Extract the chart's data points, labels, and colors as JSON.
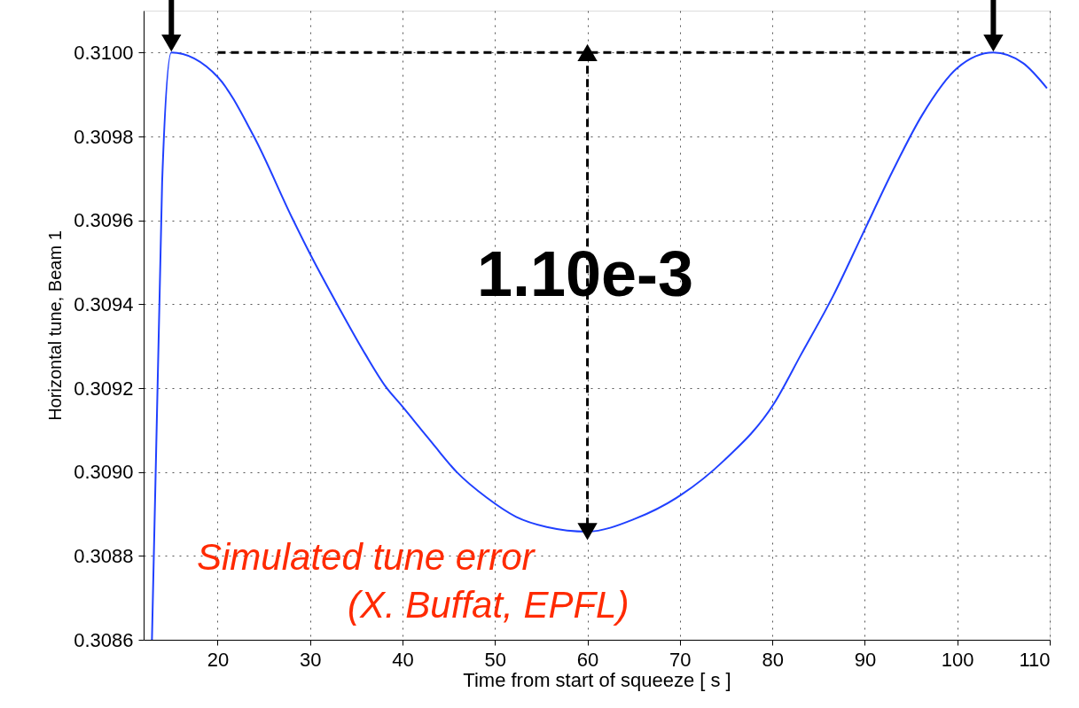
{
  "chart_data": {
    "type": "line",
    "xlabel": "Time from start of squeeze [ s ]",
    "ylabel": "Horizontal tune, Beam 1",
    "xlim": [
      12,
      110
    ],
    "xticks": [
      20,
      30,
      40,
      50,
      60,
      70,
      80,
      90,
      100,
      110
    ],
    "ylim": [
      0.3086,
      0.3101
    ],
    "yticks": [
      {
        "value": 0.3086,
        "label": "0.3086"
      },
      0.3088,
      {
        "value": 0.309,
        "label": "0.3090"
      },
      0.3092,
      0.3094,
      0.3096,
      0.3098,
      {
        "value": 0.31,
        "label": "0.3100"
      }
    ],
    "grid": true,
    "line_style": "solid",
    "marker": "none",
    "series": [
      {
        "color": "#2040ff",
        "x": [
          12.9,
          14.0,
          15.0,
          20.0,
          23.9,
          28.1,
          30.0,
          33.1,
          36.0,
          38.2,
          39.8,
          42.7,
          45.9,
          49.1,
          52.3,
          55.6,
          60.0,
          65.1,
          70.1,
          74.7,
          80.2,
          83.1,
          86.6,
          89.8,
          93.0,
          96.2,
          100.0,
          103.9,
          107.1,
          109.7
        ],
        "values": [
          0.3086,
          0.30969,
          0.31,
          0.309942,
          0.309801,
          0.309604,
          0.30952,
          0.309393,
          0.30928,
          0.309203,
          0.309161,
          0.309083,
          0.308999,
          0.308939,
          0.308893,
          0.308869,
          0.308858,
          0.308888,
          0.308945,
          0.309026,
          0.309164,
          0.30928,
          0.309421,
          0.309569,
          0.309717,
          0.309851,
          0.309963,
          0.31,
          0.309975,
          0.309915
        ]
      },
      {
        "type": "line",
        "color": "#000000",
        "line_style": "dashed",
        "x": [
          20,
          102
        ],
        "values": [
          0.31,
          0.31
        ]
      },
      {
        "type": "line",
        "color": "#000000",
        "line_style": "dashed",
        "marker": "triangle",
        "x": [
          60,
          60
        ],
        "values": [
          0.31,
          0.308858
        ]
      }
    ],
    "annotations": [
      "1.10e-3",
      "Simulated tune error",
      "(X. Buffat, EPFL)"
    ]
  }
}
